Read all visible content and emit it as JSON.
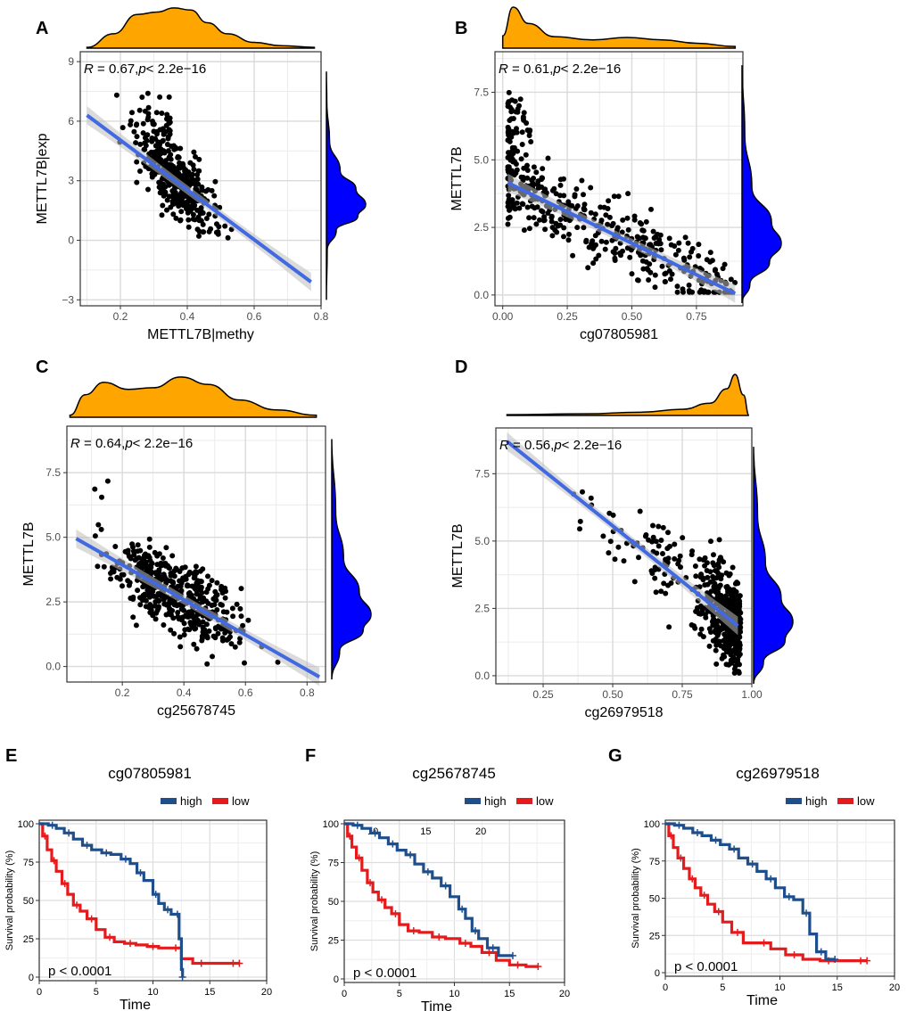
{
  "colors": {
    "density_top": "#FFA500",
    "density_right": "#0000FF",
    "regression": "#4169E1",
    "ci": "#BEBEBE",
    "grid": "#EBEBEB",
    "high": "#1F4E8C",
    "low": "#E41A1C",
    "point": "#000000"
  },
  "chart_data": [
    {
      "type": "scatter",
      "panel": "A",
      "xlabel": "METTL7B|methy",
      "ylabel": "METTL7B|exp",
      "xlim": [
        0.08,
        0.8
      ],
      "ylim": [
        -3.3,
        9.5
      ],
      "xticks": [
        {
          "v": 0.2,
          "t": "0.2"
        },
        {
          "v": 0.4,
          "t": "0.4"
        },
        {
          "v": 0.6,
          "t": "0.6"
        },
        {
          "v": 0.8,
          "t": "0.8"
        }
      ],
      "yticks": [
        {
          "v": -3,
          "t": "−3"
        },
        {
          "v": 0,
          "t": "0"
        },
        {
          "v": 3,
          "t": "3"
        },
        {
          "v": 6,
          "t": "6"
        },
        {
          "v": 9,
          "t": "9"
        }
      ],
      "stat_r": "R",
      "stat_rest": " = 0.67,",
      "stat_p": "p",
      "stat_tail": "< 2.2e−16",
      "regression": {
        "x": [
          0.1,
          0.77
        ],
        "y": [
          6.3,
          -2.1
        ]
      },
      "cloud": {
        "n": 420,
        "seed": 11,
        "xmode": "mid",
        "xcenter": 0.36,
        "xspread": 0.1,
        "xmin": 0.11,
        "xmax": 0.76,
        "noise": 1.4,
        "floor": 0.1,
        "ceil": 8.2,
        "boost": [
          0.18,
          0.35,
          2.5
        ]
      },
      "top_density": [
        {
          "x": 0.1,
          "d": 0.02
        },
        {
          "x": 0.18,
          "d": 0.35
        },
        {
          "x": 0.25,
          "d": 0.82
        },
        {
          "x": 0.31,
          "d": 0.88
        },
        {
          "x": 0.36,
          "d": 0.98
        },
        {
          "x": 0.41,
          "d": 0.93
        },
        {
          "x": 0.46,
          "d": 0.62
        },
        {
          "x": 0.52,
          "d": 0.35
        },
        {
          "x": 0.6,
          "d": 0.14
        },
        {
          "x": 0.68,
          "d": 0.06
        },
        {
          "x": 0.78,
          "d": 0.02
        }
      ],
      "right_density": [
        {
          "y": -3,
          "d": 0.0
        },
        {
          "y": -0.5,
          "d": 0.02
        },
        {
          "y": 0.5,
          "d": 0.25
        },
        {
          "y": 1.2,
          "d": 0.8
        },
        {
          "y": 1.8,
          "d": 1.0
        },
        {
          "y": 2.6,
          "d": 0.75
        },
        {
          "y": 3.5,
          "d": 0.35
        },
        {
          "y": 5,
          "d": 0.08
        },
        {
          "y": 7,
          "d": 0.01
        },
        {
          "y": 8.5,
          "d": 0.0
        }
      ]
    },
    {
      "type": "scatter",
      "panel": "B",
      "xlabel": "cg07805981",
      "ylabel": "METTL7B",
      "xlim": [
        -0.03,
        0.93
      ],
      "ylim": [
        -0.4,
        9.0
      ],
      "xticks": [
        {
          "v": 0,
          "t": "0.00"
        },
        {
          "v": 0.25,
          "t": "0.25"
        },
        {
          "v": 0.5,
          "t": "0.50"
        },
        {
          "v": 0.75,
          "t": "0.75"
        }
      ],
      "yticks": [
        {
          "v": 0,
          "t": "0.0"
        },
        {
          "v": 2.5,
          "t": "2.5"
        },
        {
          "v": 5,
          "t": "5.0"
        },
        {
          "v": 7.5,
          "t": "7.5"
        }
      ],
      "stat_r": "R",
      "stat_rest": " = 0.61,",
      "stat_p": "p",
      "stat_tail": "< 2.2e−16",
      "regression": {
        "x": [
          0.02,
          0.9
        ],
        "y": [
          4.15,
          0.05
        ]
      },
      "cloud": {
        "n": 460,
        "seed": 23,
        "xmode": "left",
        "xcenter": 0.3,
        "xspread": 0.28,
        "xmin": 0.02,
        "xmax": 0.9,
        "noise": 1.1,
        "floor": 0.1,
        "ceil": 8.5,
        "boost": [
          0.02,
          0.12,
          3.0
        ]
      },
      "top_density": [
        {
          "x": 0.0,
          "d": 0.3
        },
        {
          "x": 0.04,
          "d": 1.0
        },
        {
          "x": 0.1,
          "d": 0.6
        },
        {
          "x": 0.2,
          "d": 0.28
        },
        {
          "x": 0.35,
          "d": 0.2
        },
        {
          "x": 0.48,
          "d": 0.26
        },
        {
          "x": 0.62,
          "d": 0.2
        },
        {
          "x": 0.75,
          "d": 0.12
        },
        {
          "x": 0.9,
          "d": 0.04
        }
      ],
      "right_density": [
        {
          "y": -0.3,
          "d": 0.0
        },
        {
          "y": 0.4,
          "d": 0.2
        },
        {
          "y": 1.2,
          "d": 0.7
        },
        {
          "y": 1.9,
          "d": 1.0
        },
        {
          "y": 2.7,
          "d": 0.75
        },
        {
          "y": 4,
          "d": 0.25
        },
        {
          "y": 6,
          "d": 0.07
        },
        {
          "y": 8.5,
          "d": 0.0
        }
      ]
    },
    {
      "type": "scatter",
      "panel": "C",
      "xlabel": "cg25678745",
      "ylabel": "METTL7B",
      "xlim": [
        0.02,
        0.86
      ],
      "ylim": [
        -0.6,
        9.3
      ],
      "xticks": [
        {
          "v": 0.2,
          "t": "0.2"
        },
        {
          "v": 0.4,
          "t": "0.4"
        },
        {
          "v": 0.6,
          "t": "0.6"
        },
        {
          "v": 0.8,
          "t": "0.8"
        }
      ],
      "yticks": [
        {
          "v": 0,
          "t": "0.0"
        },
        {
          "v": 2.5,
          "t": "2.5"
        },
        {
          "v": 5,
          "t": "5.0"
        },
        {
          "v": 7.5,
          "t": "7.5"
        }
      ],
      "stat_r": "R",
      "stat_rest": " = 0.64,",
      "stat_p": "p",
      "stat_tail": "< 2.2e−16",
      "regression": {
        "x": [
          0.05,
          0.84
        ],
        "y": [
          4.95,
          -0.4
        ]
      },
      "cloud": {
        "n": 480,
        "seed": 37,
        "xmode": "mid",
        "xcenter": 0.38,
        "xspread": 0.18,
        "xmin": 0.05,
        "xmax": 0.84,
        "noise": 1.2,
        "floor": 0.1,
        "ceil": 8.8,
        "boost": [
          0.05,
          0.16,
          3.0
        ]
      },
      "top_density": [
        {
          "x": 0.03,
          "d": 0.05
        },
        {
          "x": 0.08,
          "d": 0.55
        },
        {
          "x": 0.14,
          "d": 0.85
        },
        {
          "x": 0.22,
          "d": 0.68
        },
        {
          "x": 0.3,
          "d": 0.72
        },
        {
          "x": 0.39,
          "d": 0.98
        },
        {
          "x": 0.48,
          "d": 0.8
        },
        {
          "x": 0.58,
          "d": 0.42
        },
        {
          "x": 0.7,
          "d": 0.18
        },
        {
          "x": 0.83,
          "d": 0.05
        }
      ],
      "right_density": [
        {
          "y": -0.5,
          "d": 0.0
        },
        {
          "y": 0.6,
          "d": 0.2
        },
        {
          "y": 1.4,
          "d": 0.8
        },
        {
          "y": 2.0,
          "d": 1.0
        },
        {
          "y": 2.9,
          "d": 0.7
        },
        {
          "y": 4.2,
          "d": 0.3
        },
        {
          "y": 6,
          "d": 0.1
        },
        {
          "y": 8.8,
          "d": 0.0
        }
      ]
    },
    {
      "type": "scatter",
      "panel": "D",
      "xlabel": "cg26979518",
      "ylabel": "METTL7B",
      "xlim": [
        0.08,
        1.0
      ],
      "ylim": [
        -0.3,
        9.2
      ],
      "xticks": [
        {
          "v": 0.25,
          "t": "0.25"
        },
        {
          "v": 0.5,
          "t": "0.50"
        },
        {
          "v": 0.75,
          "t": "0.75"
        },
        {
          "v": 1.0,
          "t": "1.00"
        }
      ],
      "yticks": [
        {
          "v": 0,
          "t": "0.0"
        },
        {
          "v": 2.5,
          "t": "2.5"
        },
        {
          "v": 5,
          "t": "5.0"
        },
        {
          "v": 7.5,
          "t": "7.5"
        }
      ],
      "stat_r": "R",
      "stat_rest": " = 0.56,",
      "stat_p": "p",
      "stat_tail": "< 2.2e−16",
      "regression": {
        "x": [
          0.12,
          0.95
        ],
        "y": [
          8.7,
          1.85
        ]
      },
      "cloud": {
        "n": 500,
        "seed": 53,
        "xmode": "right",
        "xcenter": 0.9,
        "xspread": 0.1,
        "xmin": 0.12,
        "xmax": 0.96,
        "noise": 1.4,
        "floor": 0.1,
        "ceil": 9.0,
        "boost": [
          0,
          0,
          0
        ]
      },
      "top_density": [
        {
          "x": 0.12,
          "d": 0.02
        },
        {
          "x": 0.4,
          "d": 0.04
        },
        {
          "x": 0.6,
          "d": 0.08
        },
        {
          "x": 0.75,
          "d": 0.15
        },
        {
          "x": 0.85,
          "d": 0.3
        },
        {
          "x": 0.91,
          "d": 0.65
        },
        {
          "x": 0.94,
          "d": 1.0
        },
        {
          "x": 0.97,
          "d": 0.5
        },
        {
          "x": 0.99,
          "d": 0.0
        }
      ],
      "right_density": [
        {
          "y": -0.3,
          "d": 0.0
        },
        {
          "y": 0.5,
          "d": 0.25
        },
        {
          "y": 1.3,
          "d": 0.8
        },
        {
          "y": 2.0,
          "d": 1.0
        },
        {
          "y": 2.9,
          "d": 0.7
        },
        {
          "y": 4.2,
          "d": 0.3
        },
        {
          "y": 6,
          "d": 0.1
        },
        {
          "y": 8.5,
          "d": 0.0
        }
      ]
    },
    {
      "type": "line",
      "panel": "E",
      "title": "cg07805981",
      "legend": [
        "high",
        "low"
      ],
      "ylabel": "Survival probability (%)",
      "xlabel": "Time",
      "pvalue": "p < 0.0001",
      "xlim": [
        0,
        20
      ],
      "ylim": [
        0,
        100
      ],
      "xticks": [
        "0",
        "5",
        "10",
        "15",
        "20"
      ],
      "yticks": [
        "0",
        "25",
        "50",
        "75",
        "100"
      ],
      "high": {
        "x": [
          0,
          0.8,
          1.5,
          2.2,
          3,
          3.8,
          4.6,
          5.5,
          6.3,
          7.2,
          8,
          8.6,
          9.2,
          10,
          10.5,
          11,
          11.6,
          12,
          12.3,
          12.5,
          12.6
        ],
        "y": [
          100,
          99,
          97,
          94,
          90,
          86,
          83,
          81,
          80,
          77,
          74,
          68,
          63,
          54,
          48,
          44,
          41,
          41,
          25,
          5,
          0
        ]
      },
      "low": {
        "x": [
          0,
          0.3,
          0.7,
          1.1,
          1.5,
          2,
          2.5,
          3,
          3.6,
          4.2,
          5,
          5.8,
          6.6,
          7.5,
          8.5,
          9.5,
          10.5,
          11.5,
          12.5,
          13.5,
          15,
          16.5,
          17.6
        ],
        "y": [
          100,
          92,
          83,
          76,
          69,
          61,
          54,
          47,
          43,
          38,
          31,
          26,
          23,
          22,
          21,
          20,
          19,
          19,
          12,
          9,
          9,
          9,
          9
        ]
      }
    },
    {
      "type": "line",
      "panel": "F",
      "title": "cg25678745",
      "legend": [
        "high",
        "low"
      ],
      "ylabel": "Survival probability (%)",
      "xlabel": "Time",
      "pvalue": "p < 0.0001",
      "xlim": [
        0,
        20
      ],
      "ylim": [
        0,
        100
      ],
      "xticks": [
        "0",
        "5",
        "10",
        "15",
        "20"
      ],
      "yticks": [
        "0",
        "25",
        "50",
        "75",
        "100"
      ],
      "stray_labels": [
        {
          "x": 2.6,
          "t": "10"
        },
        {
          "x": 7.4,
          "t": "15"
        },
        {
          "x": 12.4,
          "t": "20"
        }
      ],
      "high": {
        "x": [
          0,
          0.8,
          1.6,
          2.4,
          3.2,
          4,
          4.8,
          5.6,
          6.4,
          7.2,
          8,
          8.8,
          9.6,
          10.4,
          11,
          11.6,
          12.2,
          13,
          14,
          15.3
        ],
        "y": [
          100,
          99,
          97,
          94,
          91,
          87,
          83,
          80,
          74,
          69,
          65,
          60,
          53,
          45,
          39,
          31,
          26,
          20,
          15,
          15
        ]
      },
      "low": {
        "x": [
          0,
          0.3,
          0.7,
          1.1,
          1.6,
          2.1,
          2.6,
          3.1,
          3.7,
          4.3,
          5,
          5.8,
          6.8,
          8,
          9.2,
          10.5,
          11.5,
          12.5,
          13.8,
          15,
          16.5,
          17.6
        ],
        "y": [
          100,
          92,
          85,
          78,
          70,
          62,
          56,
          51,
          46,
          42,
          35,
          31,
          30,
          27,
          26,
          23,
          21,
          17,
          12,
          9,
          8,
          8
        ]
      }
    },
    {
      "type": "line",
      "panel": "G",
      "title": "cg26979518",
      "legend": [
        "high",
        "low"
      ],
      "ylabel": "Survival probability (%)",
      "xlabel": "Time",
      "pvalue": "p < 0.0001",
      "xlim": [
        0,
        20
      ],
      "ylim": [
        0,
        100
      ],
      "xticks": [
        "0",
        "5",
        "10",
        "15",
        "20"
      ],
      "yticks": [
        "0",
        "25",
        "50",
        "75",
        "100"
      ],
      "high": {
        "x": [
          0,
          0.8,
          1.6,
          2.4,
          3.2,
          4,
          4.8,
          5.6,
          6.4,
          7.2,
          8,
          8.8,
          9.6,
          10.4,
          11.2,
          12,
          12.6,
          13.2,
          14,
          14.8
        ],
        "y": [
          100,
          99,
          97,
          94,
          92,
          89,
          86,
          83,
          77,
          73,
          68,
          63,
          57,
          51,
          49,
          40,
          26,
          14,
          9,
          9
        ]
      },
      "low": {
        "x": [
          0,
          0.3,
          0.7,
          1.1,
          1.6,
          2.1,
          2.6,
          3.1,
          3.7,
          4.3,
          5,
          5.8,
          6.8,
          8,
          9.2,
          10.5,
          12,
          13.5,
          15,
          16.5,
          17.6
        ],
        "y": [
          100,
          92,
          84,
          77,
          70,
          63,
          57,
          52,
          46,
          41,
          34,
          27,
          20,
          20,
          16,
          12,
          9,
          8,
          8,
          8,
          8
        ]
      }
    }
  ]
}
